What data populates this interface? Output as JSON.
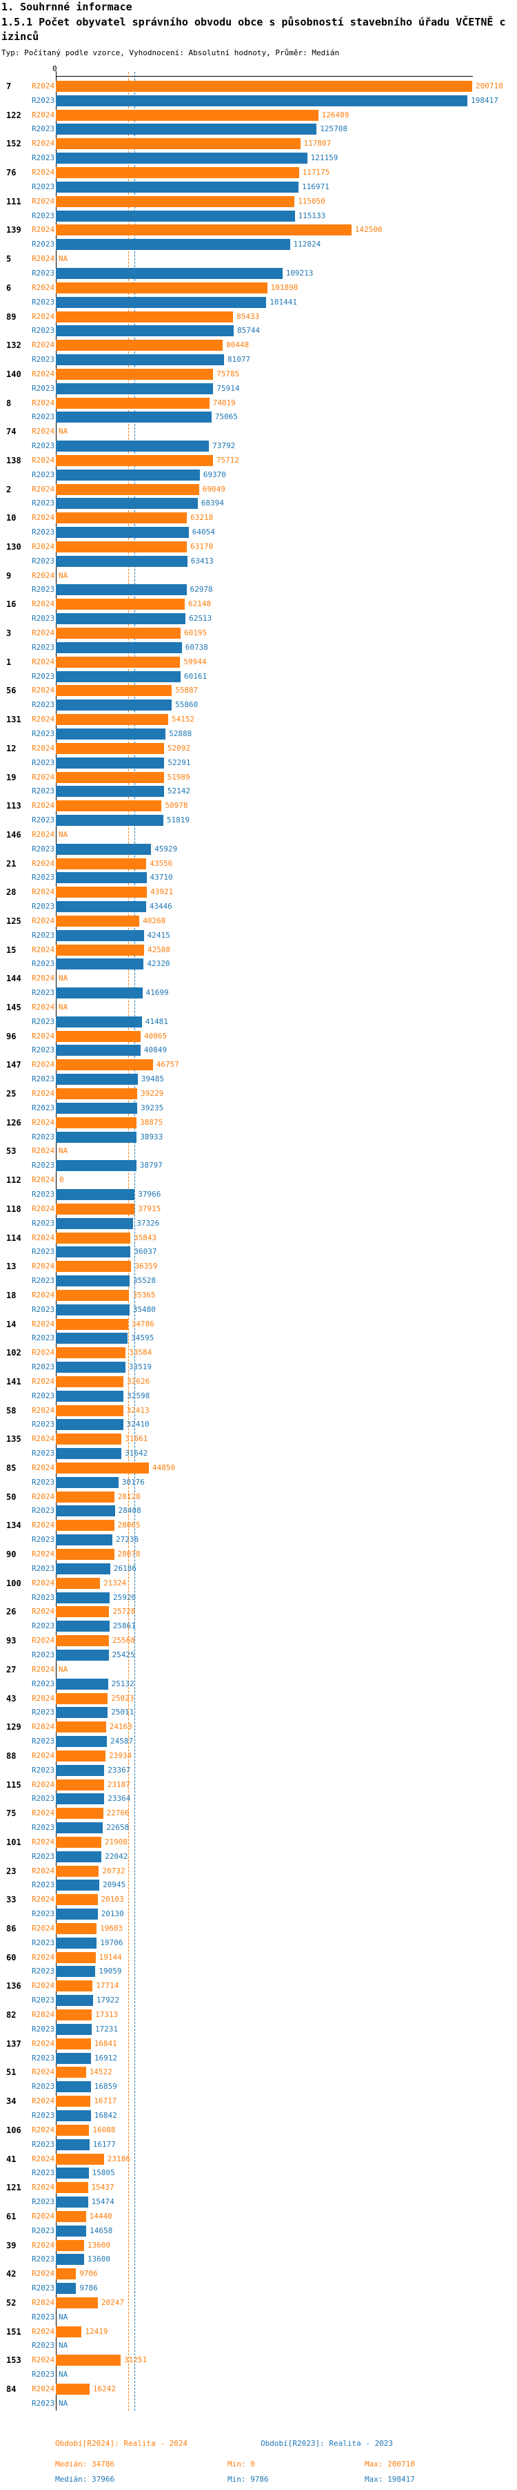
{
  "header": {
    "line1": "1. Souhrnné informace",
    "meta": "Typ: Počítaný podle vzorce, Vyhodnocení: Absolutní hodnoty, Průměr: Medián"
  },
  "chart_data": {
    "type": "bar",
    "orientation": "horizontal",
    "title": "1.5.1 Počet obyvatel správního obvodu obce s působností stavebního úřadu VČETNĚ cizinců",
    "axis": {
      "zero_label": "0",
      "xmin": 0,
      "xmax": 200710,
      "grid": false
    },
    "na_label": "NA",
    "series": [
      {
        "name": "R2024",
        "color": "#ff7f0e",
        "median": 34786,
        "min": 0,
        "max": 200710
      },
      {
        "name": "R2023",
        "color": "#1f77b4",
        "median": 37966,
        "min": 9786,
        "max": 198417
      }
    ],
    "columns": [
      "id",
      "R2024",
      "R2023"
    ],
    "groups": [
      [
        "7",
        200710,
        198417
      ],
      [
        "122",
        126489,
        125708
      ],
      [
        "152",
        117807,
        121159
      ],
      [
        "76",
        117175,
        116971
      ],
      [
        "111",
        115050,
        115133
      ],
      [
        "139",
        142500,
        112824
      ],
      [
        "5",
        null,
        109213
      ],
      [
        "6",
        101898,
        101441
      ],
      [
        "89",
        85433,
        85744
      ],
      [
        "132",
        80448,
        81077
      ],
      [
        "140",
        75785,
        75914
      ],
      [
        "8",
        74019,
        75065
      ],
      [
        "74",
        null,
        73792
      ],
      [
        "138",
        75712,
        69370
      ],
      [
        "2",
        69049,
        68394
      ],
      [
        "10",
        63218,
        64054
      ],
      [
        "130",
        63170,
        63413
      ],
      [
        "9",
        null,
        62978
      ],
      [
        "16",
        62148,
        62513
      ],
      [
        "3",
        60195,
        60738
      ],
      [
        "1",
        59944,
        60161
      ],
      [
        "56",
        55887,
        55860
      ],
      [
        "131",
        54152,
        52888
      ],
      [
        "12",
        52092,
        52291
      ],
      [
        "19",
        51989,
        52142
      ],
      [
        "113",
        50978,
        51819
      ],
      [
        "146",
        null,
        45929
      ],
      [
        "21",
        43556,
        43710
      ],
      [
        "28",
        43921,
        43446
      ],
      [
        "125",
        40268,
        42415
      ],
      [
        "15",
        42508,
        42320
      ],
      [
        "144",
        null,
        41699
      ],
      [
        "145",
        null,
        41481
      ],
      [
        "96",
        40865,
        40849
      ],
      [
        "147",
        46757,
        39485
      ],
      [
        "25",
        39229,
        39235
      ],
      [
        "126",
        38875,
        38933
      ],
      [
        "53",
        null,
        38797
      ],
      [
        "112",
        0,
        37966
      ],
      [
        "118",
        37915,
        37326
      ],
      [
        "114",
        35843,
        36037
      ],
      [
        "13",
        36359,
        35528
      ],
      [
        "18",
        35365,
        35480
      ],
      [
        "14",
        34786,
        34595
      ],
      [
        "102",
        33584,
        33519
      ],
      [
        "141",
        32626,
        32598
      ],
      [
        "58",
        32413,
        32410
      ],
      [
        "135",
        31661,
        31642
      ],
      [
        "85",
        44850,
        30176
      ],
      [
        "50",
        28128,
        28408
      ],
      [
        "134",
        28065,
        27238
      ],
      [
        "90",
        28078,
        26186
      ],
      [
        "100",
        21324,
        25920
      ],
      [
        "26",
        25728,
        25861
      ],
      [
        "93",
        25568,
        25425
      ],
      [
        "27",
        null,
        25132
      ],
      [
        "43",
        25023,
        25011
      ],
      [
        "129",
        24163,
        24587
      ],
      [
        "88",
        23934,
        23367
      ],
      [
        "115",
        23187,
        23364
      ],
      [
        "75",
        22766,
        22658
      ],
      [
        "101",
        21908,
        22042
      ],
      [
        "23",
        20732,
        20945
      ],
      [
        "33",
        20103,
        20130
      ],
      [
        "86",
        19603,
        19706
      ],
      [
        "60",
        19144,
        19059
      ],
      [
        "136",
        17714,
        17922
      ],
      [
        "82",
        17313,
        17231
      ],
      [
        "137",
        16841,
        16912
      ],
      [
        "51",
        14522,
        16859
      ],
      [
        "34",
        16717,
        16842
      ],
      [
        "106",
        16088,
        16177
      ],
      [
        "41",
        23186,
        15805
      ],
      [
        "121",
        15437,
        15474
      ],
      [
        "61",
        14440,
        14658
      ],
      [
        "39",
        13600,
        13600
      ],
      [
        "42",
        9706,
        9786
      ],
      [
        "52",
        20247,
        null
      ],
      [
        "151",
        12419,
        null
      ],
      [
        "153",
        31251,
        null
      ],
      [
        "84",
        16242,
        null
      ]
    ]
  },
  "footer": {
    "period_r2024": "Období[R2024]: Realita - 2024",
    "period_r2023": "Období[R2023]: Realita - 2023",
    "median_r2024": "Medián: 34786",
    "min_r2024": "Min: 0",
    "max_r2024": "Max: 200710",
    "median_r2023": "Medián: 37966",
    "min_r2023": "Min: 9786",
    "max_r2023": "Max: 198417"
  }
}
